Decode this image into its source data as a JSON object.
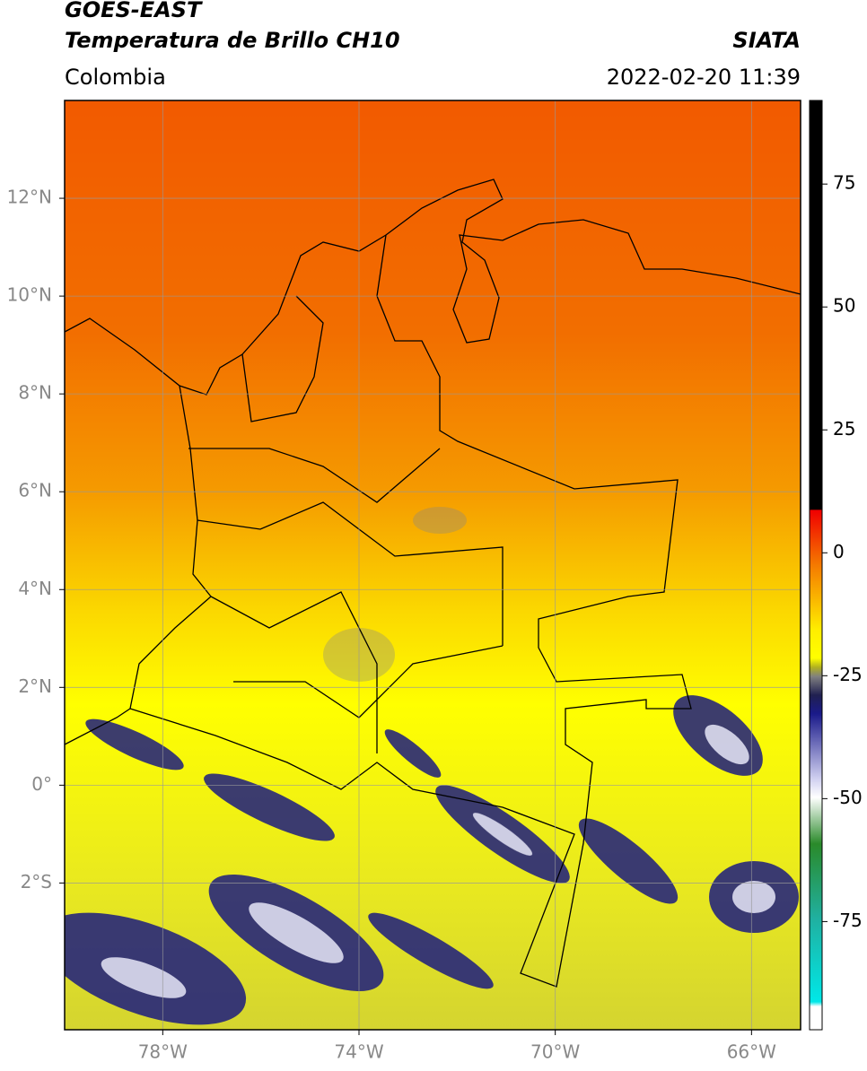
{
  "header": {
    "title_line1": "GOES-EAST",
    "title_line2": "Temperatura de Brillo CH10",
    "subtitle": "Colombia",
    "source": "SIATA",
    "timestamp": "2022-02-20 11:39"
  },
  "map": {
    "xlim": [
      -80,
      -65
    ],
    "ylim": [
      -5,
      14
    ],
    "xticks": [
      {
        "value": -78,
        "label": "78°W"
      },
      {
        "value": -74,
        "label": "74°W"
      },
      {
        "value": -70,
        "label": "70°W"
      },
      {
        "value": -66,
        "label": "66°W"
      }
    ],
    "yticks": [
      {
        "value": 12,
        "label": "12°N"
      },
      {
        "value": 10,
        "label": "10°N"
      },
      {
        "value": 8,
        "label": "8°N"
      },
      {
        "value": 6,
        "label": "6°N"
      },
      {
        "value": 4,
        "label": "4°N"
      },
      {
        "value": 2,
        "label": "2°N"
      },
      {
        "value": 0,
        "label": "0°"
      },
      {
        "value": -2,
        "label": "2°S"
      }
    ],
    "grid": true
  },
  "colorbar": {
    "lim": [
      -97,
      92
    ],
    "ticks": [
      75,
      50,
      25,
      0,
      -25,
      -50,
      -75
    ]
  }
}
